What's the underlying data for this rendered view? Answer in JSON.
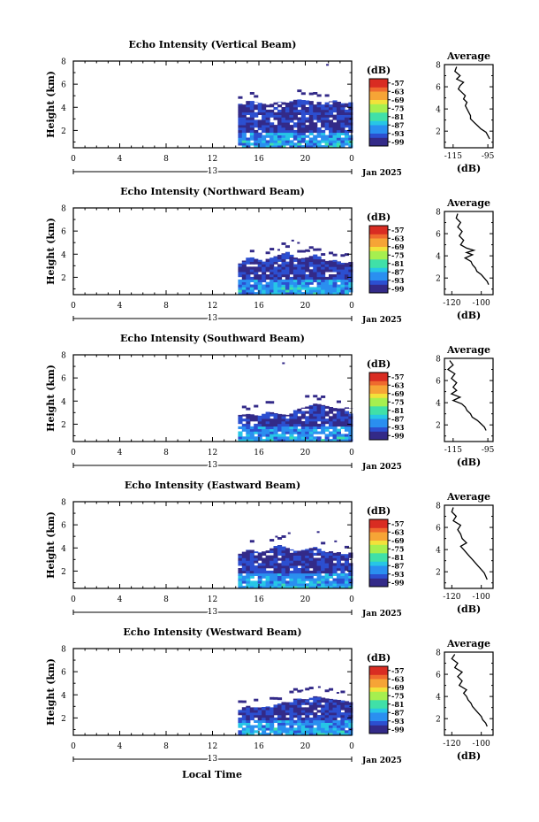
{
  "chart_data": {
    "type": "heatmap",
    "xlabel": "Local Time",
    "x_ticks": [
      "0",
      "4",
      "8",
      "12",
      "16",
      "20",
      "0"
    ],
    "x_range_hours": [
      0,
      24
    ],
    "date_label": "13",
    "month_year_label": "Jan 2025",
    "ylabel": "Height (km)",
    "y_ticks": [
      "2",
      "4",
      "6",
      "8"
    ],
    "y_range_km": [
      0.5,
      8
    ],
    "colorbar_unit": "(dB)",
    "colorbar_ticks": [
      "-57",
      "-63",
      "-69",
      "-75",
      "-81",
      "-87",
      "-93",
      "-99"
    ],
    "colorbar_range_db": [
      -102,
      -54
    ],
    "colormap": [
      "#332a88",
      "#2c4fd0",
      "#2a8ff0",
      "#27c6e6",
      "#40e0a8",
      "#a6ef4f",
      "#f2e23a",
      "#f6a436",
      "#ef6a2e",
      "#d92c22"
    ],
    "data_start_hour": 14.2,
    "average_profile_title": "Average",
    "average_profile_xlabel": "(dB)",
    "panels": [
      {
        "title": "Echo Intensity (Vertical Beam)",
        "profile_xticks": [
          "-115",
          "-95"
        ],
        "profile_xrange": [
          -120,
          -92
        ],
        "profile_points": [
          [
            -113,
            7.8
          ],
          [
            -114,
            7.4
          ],
          [
            -111,
            7.0
          ],
          [
            -113,
            6.7
          ],
          [
            -109,
            6.4
          ],
          [
            -111,
            6.1
          ],
          [
            -112,
            5.8
          ],
          [
            -110,
            5.5
          ],
          [
            -108,
            5.2
          ],
          [
            -109,
            4.9
          ],
          [
            -107,
            4.6
          ],
          [
            -108,
            4.3
          ],
          [
            -107,
            4.0
          ],
          [
            -106,
            3.7
          ],
          [
            -105,
            3.4
          ],
          [
            -105,
            3.1
          ],
          [
            -103,
            2.8
          ],
          [
            -101,
            2.5
          ],
          [
            -99,
            2.2
          ],
          [
            -96,
            1.9
          ],
          [
            -95,
            1.6
          ],
          [
            -94,
            1.3
          ]
        ],
        "cloud_top_km": [
          4.3,
          4.6,
          4.4,
          4.2,
          4.5,
          4.4,
          4.7,
          4.6,
          4.5,
          4.4,
          4.6,
          4.3,
          4.5
        ],
        "sparse_echo": [
          [
            21.8,
            7.6
          ]
        ]
      },
      {
        "title": "Echo Intensity (Northward Beam)",
        "profile_xticks": [
          "-120",
          "-100"
        ],
        "profile_xrange": [
          -125,
          -92
        ],
        "profile_points": [
          [
            -116,
            7.8
          ],
          [
            -117,
            7.4
          ],
          [
            -114,
            7.0
          ],
          [
            -116,
            6.6
          ],
          [
            -113,
            6.2
          ],
          [
            -115,
            5.8
          ],
          [
            -112,
            5.4
          ],
          [
            -114,
            5.0
          ],
          [
            -110,
            4.7
          ],
          [
            -105,
            4.5
          ],
          [
            -110,
            4.3
          ],
          [
            -106,
            4.1
          ],
          [
            -111,
            3.8
          ],
          [
            -107,
            3.5
          ],
          [
            -106,
            3.2
          ],
          [
            -104,
            2.9
          ],
          [
            -103,
            2.6
          ],
          [
            -100,
            2.3
          ],
          [
            -98,
            2.0
          ],
          [
            -96,
            1.7
          ],
          [
            -95,
            1.4
          ]
        ],
        "cloud_top_km": [
          3.2,
          3.8,
          3.5,
          3.6,
          3.9,
          4.2,
          3.6,
          3.7,
          4.0,
          3.4,
          3.5,
          3.2,
          3.4
        ],
        "sparse_echo": [
          [
            17.6,
            4.3
          ],
          [
            18.8,
            5.1
          ],
          [
            19.3,
            4.9
          ],
          [
            20.2,
            4.2
          ]
        ]
      },
      {
        "title": "Echo Intensity (Southward Beam)",
        "profile_xticks": [
          "-115",
          "-95"
        ],
        "profile_xrange": [
          -120,
          -92
        ],
        "profile_points": [
          [
            -117,
            7.8
          ],
          [
            -115,
            7.4
          ],
          [
            -118,
            7.0
          ],
          [
            -114,
            6.6
          ],
          [
            -116,
            6.2
          ],
          [
            -113,
            5.8
          ],
          [
            -115,
            5.4
          ],
          [
            -113,
            5.1
          ],
          [
            -116,
            4.8
          ],
          [
            -111,
            4.5
          ],
          [
            -115,
            4.2
          ],
          [
            -110,
            3.9
          ],
          [
            -108,
            3.6
          ],
          [
            -107,
            3.3
          ],
          [
            -105,
            3.0
          ],
          [
            -104,
            2.7
          ],
          [
            -101,
            2.4
          ],
          [
            -99,
            2.1
          ],
          [
            -97,
            1.8
          ],
          [
            -96,
            1.5
          ]
        ],
        "cloud_top_km": [
          2.8,
          2.9,
          2.7,
          3.1,
          2.9,
          2.8,
          3.3,
          3.5,
          3.8,
          3.6,
          3.4,
          3.5,
          3.3
        ],
        "sparse_echo": [
          [
            18.0,
            7.2
          ]
        ]
      },
      {
        "title": "Echo Intensity (Eastward Beam)",
        "profile_xticks": [
          "-120",
          "-100"
        ],
        "profile_xrange": [
          -125,
          -92
        ],
        "profile_points": [
          [
            -119,
            7.8
          ],
          [
            -120,
            7.4
          ],
          [
            -117,
            7.0
          ],
          [
            -119,
            6.6
          ],
          [
            -114,
            6.2
          ],
          [
            -116,
            5.8
          ],
          [
            -114,
            5.4
          ],
          [
            -113,
            5.0
          ],
          [
            -110,
            4.6
          ],
          [
            -114,
            4.3
          ],
          [
            -112,
            4.0
          ],
          [
            -110,
            3.7
          ],
          [
            -108,
            3.4
          ],
          [
            -106,
            3.1
          ],
          [
            -104,
            2.8
          ],
          [
            -102,
            2.5
          ],
          [
            -100,
            2.2
          ],
          [
            -98,
            1.9
          ],
          [
            -97,
            1.6
          ],
          [
            -96,
            1.3
          ]
        ],
        "cloud_top_km": [
          3.5,
          3.9,
          3.6,
          3.8,
          4.3,
          4.0,
          3.7,
          3.9,
          4.1,
          3.6,
          3.8,
          3.4,
          3.7
        ],
        "sparse_echo": [
          [
            17.4,
            4.9
          ],
          [
            18.5,
            5.2
          ],
          [
            21.0,
            5.3
          ],
          [
            22.5,
            4.5
          ]
        ]
      },
      {
        "title": "Echo Intensity (Westward Beam)",
        "profile_xticks": [
          "-120",
          "-100"
        ],
        "profile_xrange": [
          -125,
          -92
        ],
        "profile_points": [
          [
            -118,
            7.8
          ],
          [
            -120,
            7.4
          ],
          [
            -116,
            7.0
          ],
          [
            -118,
            6.6
          ],
          [
            -113,
            6.2
          ],
          [
            -116,
            5.8
          ],
          [
            -113,
            5.4
          ],
          [
            -115,
            5.0
          ],
          [
            -110,
            4.6
          ],
          [
            -112,
            4.3
          ],
          [
            -110,
            4.0
          ],
          [
            -109,
            3.7
          ],
          [
            -107,
            3.4
          ],
          [
            -106,
            3.1
          ],
          [
            -104,
            2.8
          ],
          [
            -102,
            2.5
          ],
          [
            -100,
            2.2
          ],
          [
            -99,
            1.9
          ],
          [
            -97,
            1.6
          ],
          [
            -96,
            1.3
          ]
        ],
        "cloud_top_km": [
          2.8,
          3.1,
          2.9,
          3.0,
          3.2,
          3.5,
          3.7,
          3.6,
          3.9,
          3.7,
          3.6,
          3.5,
          3.3
        ],
        "sparse_echo": [
          [
            19.6,
            4.3
          ],
          [
            21.1,
            4.6
          ],
          [
            22.7,
            4.1
          ]
        ]
      }
    ]
  }
}
